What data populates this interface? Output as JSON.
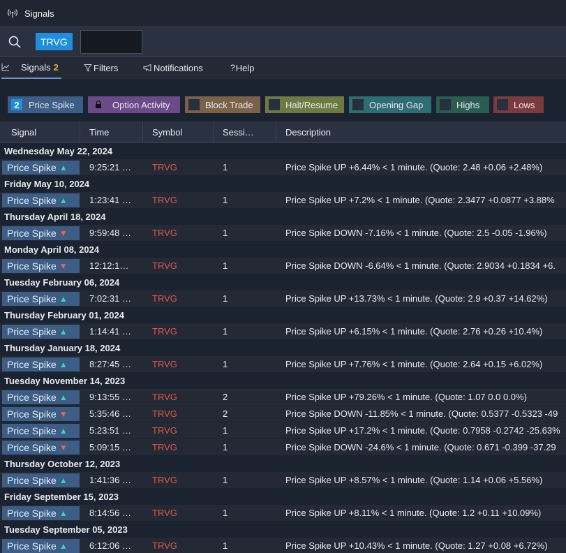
{
  "window": {
    "title": "Signals"
  },
  "search": {
    "symbol_chip": "TRVG",
    "value": ""
  },
  "tabs": [
    {
      "label": "Signals",
      "count": "2"
    },
    {
      "label": "Filters"
    },
    {
      "label": "Notifications"
    },
    {
      "label": "Help"
    }
  ],
  "filters": [
    {
      "label": "Price Spike",
      "count": "2",
      "color": "#3c5d85"
    },
    {
      "label": "Option Activity",
      "color": "#6c4a8a",
      "icon": "lock-icon"
    },
    {
      "label": "Block Trade",
      "color": "#7a6148"
    },
    {
      "label": "Halt/Resume",
      "color": "#6f7a42"
    },
    {
      "label": "Opening Gap",
      "color": "#2f6d74"
    },
    {
      "label": "Highs",
      "color": "#2a5d52"
    },
    {
      "label": "Lows",
      "color": "#7a3a3e"
    }
  ],
  "columns": [
    "Signal",
    "Time",
    "Symbol",
    "Sessi…",
    "Description"
  ],
  "groups": [
    {
      "date": "Wednesday May 22, 2024",
      "rows": [
        {
          "signal": "Price Spike",
          "dir": "up",
          "time": "9:25:21 …",
          "symbol": "TRVG",
          "session": "1",
          "description": "Price Spike UP +6.44% < 1 minute. (Quote: 2.48 +0.06 +2.48%)"
        }
      ]
    },
    {
      "date": "Friday May 10, 2024",
      "rows": [
        {
          "signal": "Price Spike",
          "dir": "up",
          "time": "1:23:41 …",
          "symbol": "TRVG",
          "session": "1",
          "description": "Price Spike UP +7.2% < 1 minute. (Quote: 2.3477 +0.0877 +3.88%"
        }
      ]
    },
    {
      "date": "Thursday April 18, 2024",
      "rows": [
        {
          "signal": "Price Spike",
          "dir": "down",
          "time": "9:59:48 …",
          "symbol": "TRVG",
          "session": "1",
          "description": "Price Spike DOWN -7.16% < 1 minute. (Quote: 2.5 -0.05 -1.96%)"
        }
      ]
    },
    {
      "date": "Monday April 08, 2024",
      "rows": [
        {
          "signal": "Price Spike",
          "dir": "down",
          "time": "12:12:1…",
          "symbol": "TRVG",
          "session": "1",
          "description": "Price Spike DOWN -6.64% < 1 minute. (Quote: 2.9034 +0.1834 +6."
        }
      ]
    },
    {
      "date": "Tuesday February 06, 2024",
      "rows": [
        {
          "signal": "Price Spike",
          "dir": "up",
          "time": "7:02:31 …",
          "symbol": "TRVG",
          "session": "1",
          "description": "Price Spike UP +13.73% < 1 minute. (Quote: 2.9 +0.37 +14.62%)"
        }
      ]
    },
    {
      "date": "Thursday February 01, 2024",
      "rows": [
        {
          "signal": "Price Spike",
          "dir": "up",
          "time": "1:14:41 …",
          "symbol": "TRVG",
          "session": "1",
          "description": "Price Spike UP +6.15% < 1 minute. (Quote: 2.76 +0.26 +10.4%)"
        }
      ]
    },
    {
      "date": "Thursday January 18, 2024",
      "rows": [
        {
          "signal": "Price Spike",
          "dir": "up",
          "time": "8:27:45 …",
          "symbol": "TRVG",
          "session": "1",
          "description": "Price Spike UP +7.76% < 1 minute. (Quote: 2.64 +0.15 +6.02%)"
        }
      ]
    },
    {
      "date": "Tuesday November 14, 2023",
      "rows": [
        {
          "signal": "Price Spike",
          "dir": "up",
          "time": "9:13:55 …",
          "symbol": "TRVG",
          "session": "2",
          "description": "Price Spike UP +79.26% < 1 minute. (Quote: 1.07 0.0 0.0%)"
        },
        {
          "signal": "Price Spike",
          "dir": "down",
          "time": "5:35:46 …",
          "symbol": "TRVG",
          "session": "2",
          "description": "Price Spike DOWN -11.85% < 1 minute. (Quote: 0.5377 -0.5323 -49"
        },
        {
          "signal": "Price Spike",
          "dir": "up",
          "time": "5:23:51 …",
          "symbol": "TRVG",
          "session": "1",
          "description": "Price Spike UP +17.2% < 1 minute. (Quote: 0.7958 -0.2742 -25.63%"
        },
        {
          "signal": "Price Spike",
          "dir": "down",
          "time": "5:09:15 …",
          "symbol": "TRVG",
          "session": "1",
          "description": "Price Spike DOWN -24.6% < 1 minute. (Quote: 0.671 -0.399 -37.29"
        }
      ]
    },
    {
      "date": "Thursday October 12, 2023",
      "rows": [
        {
          "signal": "Price Spike",
          "dir": "up",
          "time": "1:41:36 …",
          "symbol": "TRVG",
          "session": "1",
          "description": "Price Spike UP +8.57% < 1 minute. (Quote: 1.14 +0.06 +5.56%)"
        }
      ]
    },
    {
      "date": "Friday September 15, 2023",
      "rows": [
        {
          "signal": "Price Spike",
          "dir": "up",
          "time": "8:14:56 …",
          "symbol": "TRVG",
          "session": "1",
          "description": "Price Spike UP +8.11% < 1 minute. (Quote: 1.2 +0.11 +10.09%)"
        }
      ]
    },
    {
      "date": "Tuesday September 05, 2023",
      "rows": [
        {
          "signal": "Price Spike",
          "dir": "up",
          "time": "6:12:06 …",
          "symbol": "TRVG",
          "session": "1",
          "description": "Price Spike UP +10.43% < 1 minute. (Quote: 1.27 +0.08 +6.72%)"
        }
      ]
    }
  ]
}
